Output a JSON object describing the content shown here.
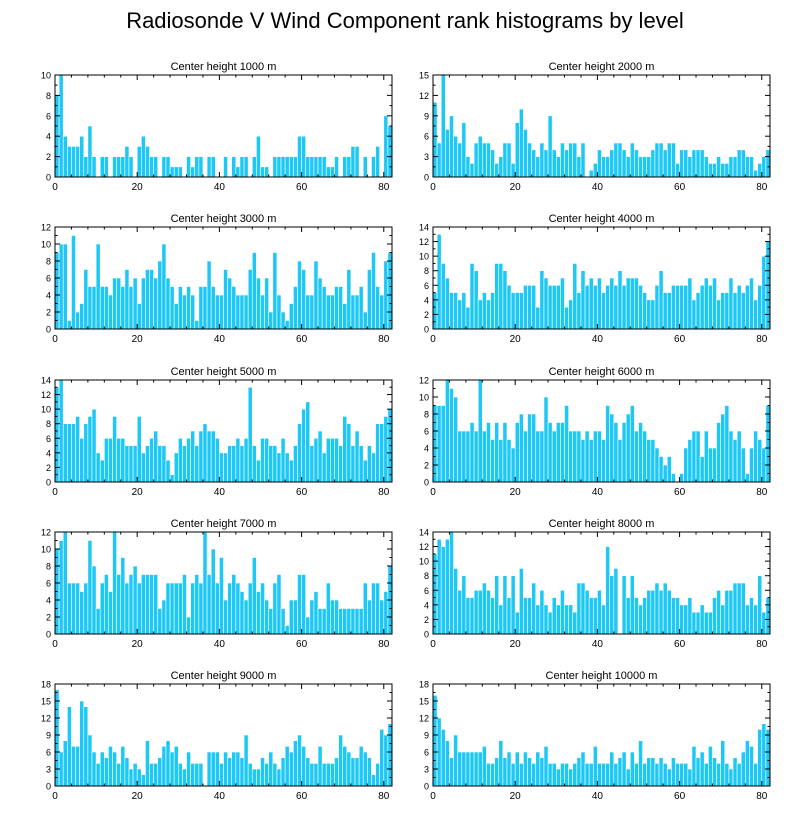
{
  "title": "Radiosonde V Wind Component rank histograms by level",
  "colors": {
    "bar": "#1ec8f5",
    "bar_edge": "#ffffff",
    "axis": "#000000"
  },
  "chart_data": [
    {
      "type": "bar",
      "title": "Center height 1000 m",
      "xlim": [
        0,
        82
      ],
      "ylim": [
        0,
        10
      ],
      "xticks": [
        0,
        20,
        40,
        60,
        80
      ],
      "yticks": [
        0,
        2,
        4,
        6,
        8,
        10
      ],
      "values": [
        8,
        10,
        4,
        3,
        3,
        3,
        4,
        2,
        5,
        2,
        0,
        2,
        2,
        0,
        2,
        2,
        2,
        3,
        2,
        0,
        3,
        4,
        3,
        2,
        2,
        0,
        2,
        2,
        1,
        1,
        1,
        0,
        2,
        1,
        2,
        2,
        0,
        2,
        2,
        0,
        0,
        2,
        0,
        2,
        1,
        2,
        2,
        0,
        2,
        4,
        1,
        1,
        0,
        2,
        2,
        2,
        2,
        2,
        2,
        4,
        4,
        2,
        2,
        2,
        2,
        2,
        1,
        1,
        2,
        0,
        2,
        2,
        3,
        3,
        0,
        2,
        0,
        2,
        3,
        0,
        6,
        5
      ]
    },
    {
      "type": "bar",
      "title": "Center height 2000 m",
      "xlim": [
        0,
        82
      ],
      "ylim": [
        0,
        15
      ],
      "xticks": [
        0,
        20,
        40,
        60,
        80
      ],
      "yticks": [
        0,
        3,
        6,
        9,
        12,
        15
      ],
      "values": [
        11,
        5,
        15,
        7,
        9,
        6,
        5,
        8,
        3,
        2,
        5,
        6,
        5,
        5,
        4,
        2,
        3,
        5,
        5,
        2,
        8,
        10,
        7,
        5,
        4,
        3,
        5,
        4,
        9,
        4,
        3,
        5,
        4,
        5,
        5,
        3,
        5,
        0,
        1,
        2,
        4,
        3,
        3,
        4,
        5,
        5,
        4,
        3,
        5,
        4,
        3,
        3,
        3,
        4,
        5,
        5,
        4,
        5,
        5,
        2,
        4,
        4,
        3,
        4,
        4,
        4,
        3,
        2,
        2,
        3,
        2,
        2,
        3,
        3,
        4,
        4,
        3,
        3,
        1,
        2,
        3,
        4
      ]
    },
    {
      "type": "bar",
      "title": "Center height 3000 m",
      "xlim": [
        0,
        82
      ],
      "ylim": [
        0,
        12
      ],
      "xticks": [
        0,
        20,
        40,
        60,
        80
      ],
      "yticks": [
        0,
        2,
        4,
        6,
        8,
        10,
        12
      ],
      "values": [
        9,
        10,
        10,
        1,
        11,
        2,
        3,
        7,
        5,
        5,
        10,
        5,
        5,
        4,
        6,
        6,
        5,
        7,
        5,
        6,
        3,
        6,
        7,
        7,
        6,
        8,
        10,
        6,
        5,
        3,
        5,
        4,
        5,
        4,
        1,
        5,
        5,
        8,
        5,
        4,
        4,
        7,
        6,
        5,
        4,
        4,
        4,
        7,
        9,
        6,
        4,
        6,
        2,
        9,
        4,
        2,
        1,
        3,
        5,
        8,
        7,
        4,
        4,
        8,
        6,
        5,
        4,
        4,
        5,
        5,
        3,
        7,
        4,
        4,
        5,
        2,
        7,
        9,
        5,
        4,
        8,
        9
      ]
    },
    {
      "type": "bar",
      "title": "Center height 4000 m",
      "xlim": [
        0,
        82
      ],
      "ylim": [
        0,
        14
      ],
      "xticks": [
        0,
        20,
        40,
        60,
        80
      ],
      "yticks": [
        0,
        2,
        4,
        6,
        8,
        10,
        12,
        14
      ],
      "values": [
        5,
        13,
        9,
        7,
        5,
        5,
        4,
        5,
        3,
        9,
        8,
        4,
        5,
        4,
        5,
        9,
        9,
        8,
        6,
        5,
        5,
        5,
        6,
        6,
        6,
        3,
        8,
        7,
        6,
        6,
        6,
        7,
        3,
        4,
        9,
        5,
        8,
        6,
        7,
        6,
        7,
        5,
        6,
        7,
        6,
        8,
        6,
        7,
        7,
        7,
        6,
        5,
        4,
        4,
        6,
        8,
        5,
        5,
        6,
        6,
        6,
        6,
        7,
        4,
        5,
        6,
        7,
        6,
        7,
        4,
        5,
        5,
        7,
        5,
        6,
        5,
        6,
        7,
        4,
        6,
        10,
        12
      ]
    },
    {
      "type": "bar",
      "title": "Center height 5000 m",
      "xlim": [
        0,
        82
      ],
      "ylim": [
        0,
        14
      ],
      "xticks": [
        0,
        20,
        40,
        60,
        80
      ],
      "yticks": [
        0,
        2,
        4,
        6,
        8,
        10,
        12,
        14
      ],
      "values": [
        13,
        14,
        8,
        8,
        8,
        9,
        6,
        8,
        9,
        10,
        4,
        3,
        6,
        6,
        9,
        6,
        6,
        5,
        5,
        5,
        9,
        4,
        5,
        6,
        7,
        5,
        5,
        3,
        1,
        4,
        6,
        5,
        6,
        7,
        5,
        7,
        8,
        7,
        7,
        6,
        4,
        4,
        5,
        5,
        6,
        5,
        6,
        13,
        5,
        3,
        6,
        6,
        5,
        5,
        4,
        6,
        4,
        3,
        5,
        8,
        10,
        11,
        5,
        6,
        7,
        4,
        6,
        6,
        6,
        5,
        9,
        8,
        5,
        7,
        5,
        3,
        5,
        4,
        8,
        8,
        9,
        10
      ]
    },
    {
      "type": "bar",
      "title": "Center height 6000 m",
      "xlim": [
        0,
        82
      ],
      "ylim": [
        0,
        12
      ],
      "xticks": [
        0,
        20,
        40,
        60,
        80
      ],
      "yticks": [
        0,
        2,
        4,
        6,
        8,
        10,
        12
      ],
      "values": [
        9,
        9,
        9,
        12,
        11,
        10,
        6,
        6,
        6,
        7,
        6,
        12,
        6,
        7,
        5,
        7,
        5,
        7,
        5,
        4,
        7,
        8,
        6,
        8,
        8,
        6,
        6,
        10,
        7,
        6,
        7,
        7,
        9,
        6,
        6,
        6,
        5,
        6,
        5,
        6,
        6,
        5,
        9,
        8,
        7,
        5,
        7,
        8,
        9,
        6,
        7,
        6,
        5,
        5,
        4,
        3,
        2,
        3,
        1,
        0,
        1,
        4,
        5,
        6,
        6,
        3,
        6,
        4,
        4,
        7,
        8,
        9,
        6,
        5,
        6,
        4,
        1,
        4,
        6,
        5,
        4,
        9
      ]
    },
    {
      "type": "bar",
      "title": "Center height 7000 m",
      "xlim": [
        0,
        82
      ],
      "ylim": [
        0,
        12
      ],
      "xticks": [
        0,
        20,
        40,
        60,
        80
      ],
      "yticks": [
        0,
        2,
        4,
        6,
        8,
        10,
        12
      ],
      "values": [
        10,
        11,
        12,
        6,
        6,
        6,
        5,
        6,
        11,
        8,
        3,
        6,
        7,
        5,
        12,
        7,
        9,
        6,
        7,
        8,
        6,
        7,
        7,
        7,
        7,
        3,
        4,
        6,
        6,
        6,
        6,
        7,
        2,
        6,
        7,
        6,
        12,
        7,
        10,
        6,
        9,
        4,
        6,
        7,
        6,
        5,
        4,
        6,
        9,
        5,
        6,
        4,
        3,
        6,
        7,
        3,
        1,
        4,
        4,
        7,
        7,
        2,
        4,
        5,
        3,
        3,
        6,
        4,
        4,
        3,
        3,
        3,
        3,
        3,
        3,
        6,
        4,
        6,
        6,
        4,
        5,
        8
      ]
    },
    {
      "type": "bar",
      "title": "Center height 8000 m",
      "xlim": [
        0,
        82
      ],
      "ylim": [
        0,
        14
      ],
      "xticks": [
        0,
        20,
        40,
        60,
        80
      ],
      "yticks": [
        0,
        2,
        4,
        6,
        8,
        10,
        12,
        14
      ],
      "values": [
        11,
        13,
        12,
        13,
        14,
        9,
        6,
        8,
        5,
        5,
        6,
        6,
        7,
        6,
        5,
        8,
        4,
        8,
        5,
        8,
        3,
        9,
        5,
        5,
        7,
        4,
        6,
        4,
        3,
        5,
        4,
        6,
        4,
        4,
        3,
        7,
        7,
        6,
        5,
        5,
        6,
        4,
        12,
        8,
        9,
        0,
        8,
        5,
        8,
        5,
        4,
        5,
        6,
        6,
        7,
        6,
        7,
        6,
        5,
        5,
        4,
        4,
        5,
        3,
        3,
        4,
        3,
        3,
        5,
        6,
        4,
        6,
        6,
        7,
        7,
        7,
        4,
        5,
        4,
        8,
        3,
        5
      ]
    },
    {
      "type": "bar",
      "title": "Center height 9000 m",
      "xlim": [
        0,
        82
      ],
      "ylim": [
        0,
        18
      ],
      "xticks": [
        0,
        20,
        40,
        60,
        80
      ],
      "yticks": [
        0,
        3,
        6,
        9,
        12,
        15,
        18
      ],
      "values": [
        17,
        6,
        8,
        14,
        7,
        7,
        15,
        14,
        9,
        6,
        4,
        6,
        5,
        7,
        6,
        4,
        7,
        5,
        3,
        4,
        3,
        2,
        8,
        4,
        4,
        5,
        7,
        8,
        6,
        7,
        4,
        3,
        6,
        4,
        4,
        4,
        0,
        6,
        6,
        6,
        4,
        6,
        5,
        6,
        6,
        5,
        9,
        4,
        3,
        3,
        5,
        4,
        6,
        4,
        3,
        5,
        7,
        6,
        8,
        9,
        7,
        5,
        4,
        4,
        7,
        4,
        4,
        4,
        5,
        9,
        7,
        6,
        5,
        5,
        7,
        6,
        5,
        2,
        4,
        10,
        9,
        11
      ]
    },
    {
      "type": "bar",
      "title": "Center height 10000 m",
      "xlim": [
        0,
        82
      ],
      "ylim": [
        0,
        18
      ],
      "xticks": [
        0,
        20,
        40,
        60,
        80
      ],
      "yticks": [
        0,
        3,
        6,
        9,
        12,
        15,
        18
      ],
      "values": [
        16,
        12,
        10,
        8,
        5,
        9,
        6,
        6,
        6,
        6,
        6,
        6,
        7,
        4,
        4,
        5,
        8,
        5,
        6,
        4,
        6,
        4,
        6,
        5,
        4,
        6,
        5,
        7,
        4,
        4,
        3,
        4,
        4,
        3,
        4,
        5,
        6,
        4,
        4,
        7,
        4,
        4,
        4,
        6,
        4,
        5,
        6,
        3,
        6,
        4,
        8,
        4,
        5,
        5,
        4,
        5,
        4,
        3,
        5,
        4,
        4,
        4,
        3,
        7,
        5,
        6,
        4,
        7,
        5,
        4,
        8,
        4,
        3,
        5,
        4,
        6,
        8,
        7,
        4,
        10,
        11,
        10
      ]
    }
  ]
}
